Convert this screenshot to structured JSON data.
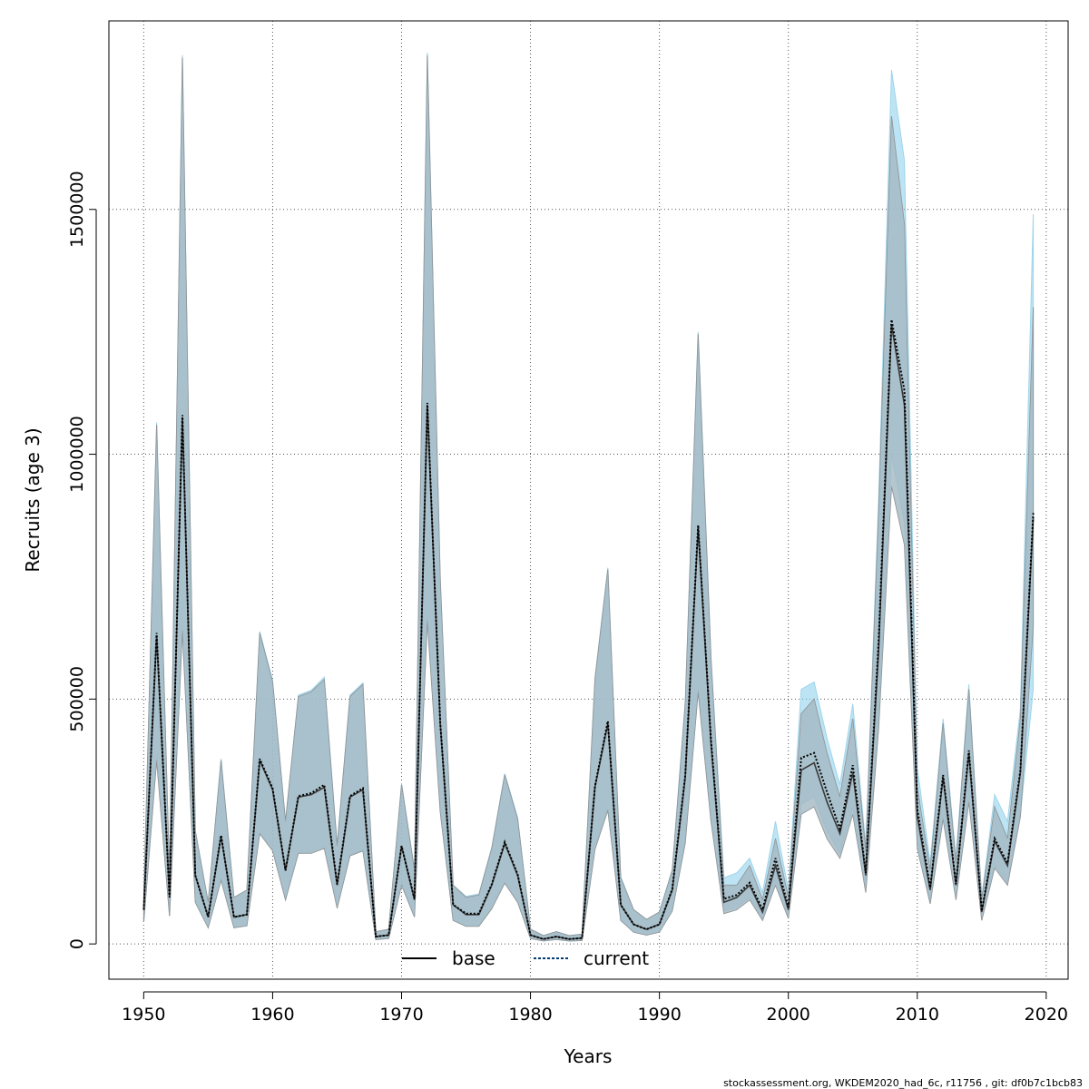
{
  "chart_data": {
    "type": "line",
    "title": "",
    "xlabel": "Years",
    "ylabel": "Recruits (age 3)",
    "xlim": [
      1947.3,
      2021.7
    ],
    "ylim": [
      -72000,
      1885000
    ],
    "x_ticks": [
      1950,
      1960,
      1970,
      1980,
      1990,
      2000,
      2010,
      2020
    ],
    "y_ticks": [
      0,
      500000,
      1000000,
      1500000
    ],
    "x_tick_labels": [
      "1950",
      "1960",
      "1970",
      "1980",
      "1990",
      "2000",
      "2010",
      "2020"
    ],
    "y_tick_labels": [
      "0",
      "500000",
      "1000000",
      "1500000"
    ],
    "grid": true,
    "legend_position": "bottom",
    "colors": {
      "base_band": "#9a9a9a",
      "current_band": "#87ceeb",
      "base_line": "#000000",
      "current_line": "#003a70",
      "overlap": "#a7c4d4"
    },
    "x": [
      1950,
      1951,
      1952,
      1953,
      1954,
      1955,
      1956,
      1957,
      1958,
      1959,
      1960,
      1961,
      1962,
      1963,
      1964,
      1965,
      1966,
      1967,
      1968,
      1969,
      1970,
      1971,
      1972,
      1973,
      1974,
      1975,
      1976,
      1977,
      1978,
      1979,
      1980,
      1981,
      1982,
      1983,
      1984,
      1985,
      1986,
      1987,
      1988,
      1989,
      1990,
      1991,
      1992,
      1993,
      1994,
      1995,
      1996,
      1997,
      1998,
      1999,
      2000,
      2001,
      2002,
      2003,
      2004,
      2005,
      2006,
      2007,
      2008,
      2009,
      2010,
      2011,
      2012,
      2013,
      2014,
      2015,
      2016,
      2017,
      2018,
      2019
    ],
    "series": [
      {
        "name": "base",
        "values": [
          70000,
          630000,
          95000,
          1075000,
          140000,
          55000,
          220000,
          55000,
          60000,
          375000,
          315000,
          150000,
          300000,
          305000,
          320000,
          120000,
          300000,
          315000,
          15000,
          18000,
          200000,
          90000,
          1100000,
          450000,
          80000,
          60000,
          60000,
          120000,
          205000,
          140000,
          18000,
          10000,
          15000,
          10000,
          12000,
          320000,
          450000,
          80000,
          40000,
          30000,
          40000,
          110000,
          340000,
          850000,
          410000,
          85000,
          95000,
          120000,
          65000,
          160000,
          70000,
          355000,
          370000,
          290000,
          225000,
          350000,
          140000,
          600000,
          1265000,
          1100000,
          260000,
          110000,
          340000,
          120000,
          390000,
          65000,
          210000,
          160000,
          350000,
          870000
        ],
        "upper": [
          90000,
          1060000,
          140000,
          1810000,
          230000,
          85000,
          375000,
          95000,
          110000,
          635000,
          535000,
          250000,
          505000,
          515000,
          540000,
          200000,
          505000,
          530000,
          25000,
          30000,
          325000,
          150000,
          1815000,
          745000,
          120000,
          95000,
          100000,
          195000,
          345000,
          255000,
          30000,
          17000,
          25000,
          17000,
          20000,
          540000,
          765000,
          135000,
          70000,
          50000,
          65000,
          150000,
          490000,
          1245000,
          580000,
          120000,
          120000,
          160000,
          90000,
          215000,
          95000,
          470000,
          500000,
          390000,
          300000,
          460000,
          190000,
          880000,
          1690000,
          1470000,
          320000,
          150000,
          450000,
          165000,
          520000,
          90000,
          280000,
          215000,
          460000,
          1300000
        ],
        "lower": [
          45000,
          375000,
          57000,
          640000,
          85000,
          33000,
          130000,
          33000,
          37000,
          225000,
          190000,
          90000,
          185000,
          185000,
          195000,
          73000,
          180000,
          190000,
          9000,
          11000,
          120000,
          55000,
          660000,
          270000,
          48000,
          36000,
          36000,
          72000,
          124000,
          85000,
          11000,
          6000,
          9000,
          6000,
          7000,
          193000,
          273000,
          48000,
          24000,
          18000,
          24000,
          67000,
          206000,
          515000,
          250000,
          62000,
          70000,
          90000,
          48000,
          120000,
          52000,
          265000,
          280000,
          215000,
          175000,
          265000,
          105000,
          440000,
          935000,
          815000,
          195000,
          82000,
          255000,
          90000,
          290000,
          48000,
          155000,
          120000,
          260000,
          650000
        ]
      },
      {
        "name": "current",
        "values": [
          70000,
          635000,
          95000,
          1080000,
          140000,
          55000,
          222000,
          55000,
          60000,
          378000,
          318000,
          150000,
          302000,
          308000,
          325000,
          122000,
          302000,
          318000,
          15000,
          18000,
          200000,
          92000,
          1105000,
          452000,
          80000,
          62000,
          62000,
          122000,
          208000,
          142000,
          18000,
          10000,
          15000,
          10000,
          12000,
          322000,
          455000,
          80000,
          40000,
          30000,
          40000,
          112000,
          345000,
          855000,
          415000,
          92000,
          100000,
          125000,
          70000,
          175000,
          75000,
          380000,
          390000,
          310000,
          235000,
          365000,
          145000,
          620000,
          1275000,
          1130000,
          275000,
          115000,
          345000,
          122000,
          395000,
          67000,
          215000,
          165000,
          355000,
          880000
        ],
        "upper": [
          90000,
          1065000,
          140000,
          1815000,
          232000,
          85000,
          378000,
          95000,
          110000,
          638000,
          538000,
          250000,
          508000,
          518000,
          545000,
          202000,
          508000,
          533000,
          25000,
          30000,
          328000,
          152000,
          1820000,
          748000,
          120000,
          97000,
          102000,
          197000,
          348000,
          258000,
          30000,
          17000,
          25000,
          17000,
          20000,
          543000,
          768000,
          137000,
          70000,
          50000,
          65000,
          152000,
          495000,
          1250000,
          585000,
          135000,
          145000,
          175000,
          105000,
          250000,
          110000,
          520000,
          535000,
          420000,
          325000,
          490000,
          200000,
          910000,
          1785000,
          1600000,
          360000,
          165000,
          460000,
          175000,
          530000,
          95000,
          305000,
          250000,
          480000,
          1490000
        ],
        "lower": [
          45000,
          380000,
          57000,
          645000,
          85000,
          33000,
          132000,
          33000,
          37000,
          228000,
          192000,
          90000,
          187000,
          188000,
          198000,
          75000,
          182000,
          192000,
          9000,
          11000,
          122000,
          56000,
          665000,
          272000,
          48000,
          37000,
          37000,
          73000,
          126000,
          86000,
          11000,
          6000,
          9000,
          6000,
          7000,
          195000,
          275000,
          48000,
          24000,
          18000,
          24000,
          68000,
          208000,
          518000,
          252000,
          68000,
          75000,
          95000,
          52000,
          130000,
          56000,
          285000,
          300000,
          230000,
          185000,
          280000,
          110000,
          460000,
          1000000,
          860000,
          210000,
          88000,
          260000,
          93000,
          295000,
          50000,
          160000,
          125000,
          265000,
          520000
        ]
      }
    ]
  },
  "legend": {
    "items": [
      {
        "label": "base"
      },
      {
        "label": "current"
      }
    ]
  },
  "footer": {
    "text": "stockassessment.org, WKDEM2020_had_6c, r11756 , git: df0b7c1bcb83"
  }
}
